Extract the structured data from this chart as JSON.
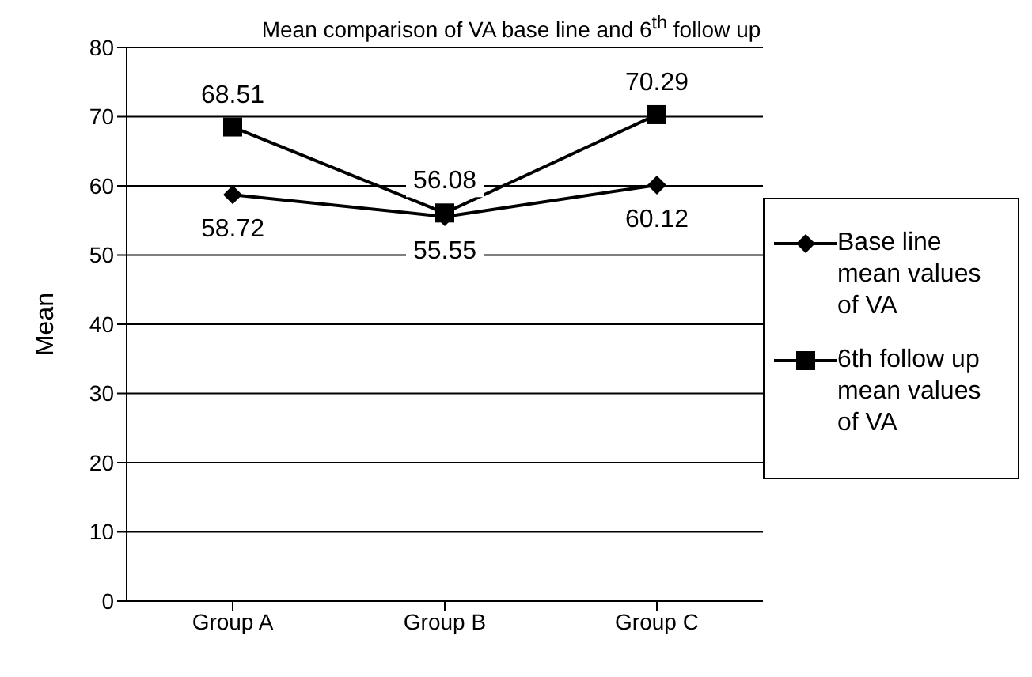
{
  "chart_data": {
    "type": "line",
    "title": "Mean comparison of VA base line and 6$^{th}$ follow up",
    "ylabel": "Mean",
    "categories": [
      "Group A",
      "Group B",
      "Group C"
    ],
    "series": [
      {
        "name": "Base line mean values of VA",
        "color": "#000000",
        "marker": "diamond",
        "values": [
          58.72,
          55.55,
          60.12
        ]
      },
      {
        "name": "6th follow up mean values of VA",
        "color": "#000000",
        "marker": "square",
        "values": [
          68.51,
          56.08,
          70.29
        ]
      }
    ],
    "ylim": [
      0,
      80
    ],
    "yticks": [
      0,
      10,
      20,
      30,
      40,
      50,
      60,
      70,
      80
    ],
    "grid": "y",
    "legend": "right",
    "data_labels": true
  }
}
